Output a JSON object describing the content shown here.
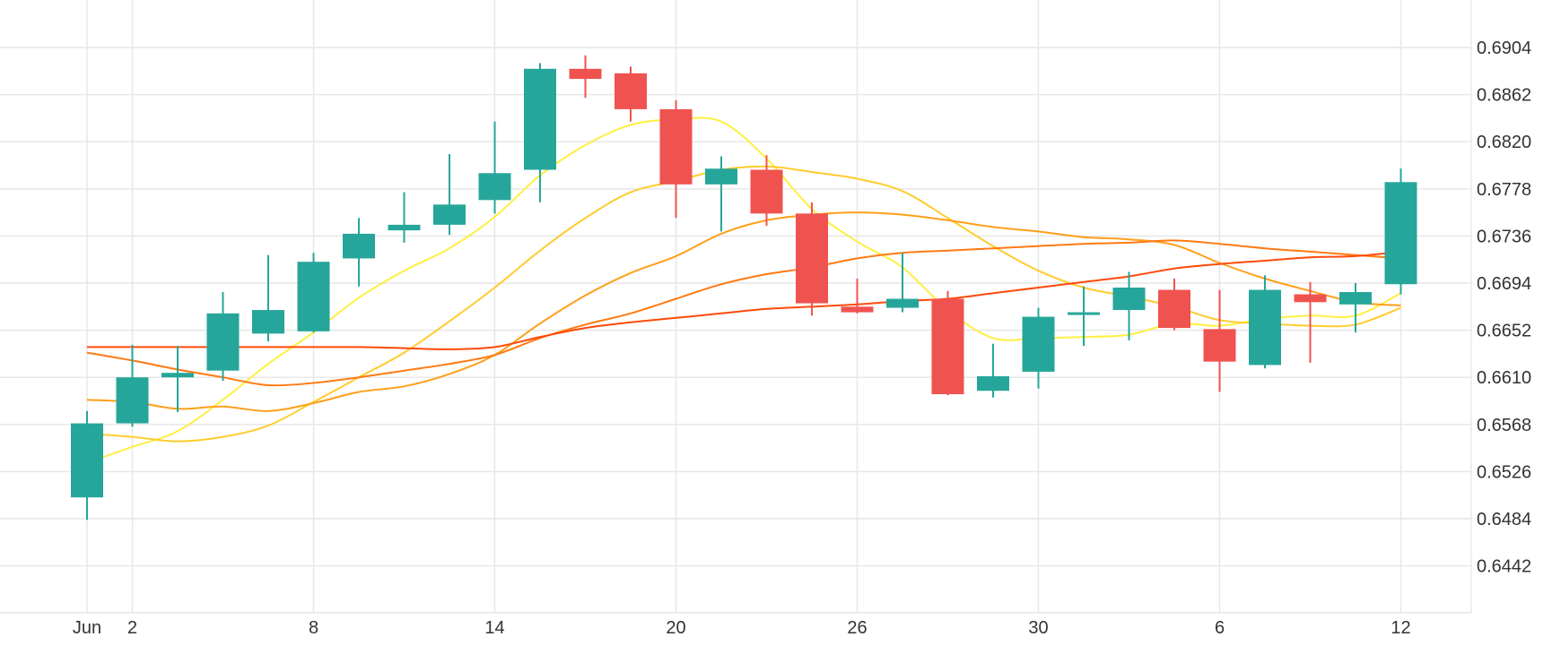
{
  "chart_data": {
    "type": "candlestick",
    "x_ticks": [
      {
        "label": "Jun",
        "index": 0
      },
      {
        "label": "2",
        "index": 1
      },
      {
        "label": "8",
        "index": 5
      },
      {
        "label": "14",
        "index": 9
      },
      {
        "label": "20",
        "index": 13
      },
      {
        "label": "26",
        "index": 17
      },
      {
        "label": "30",
        "index": 21
      },
      {
        "label": "6",
        "index": 25
      },
      {
        "label": "12",
        "index": 29
      }
    ],
    "y_ticks": [
      "0.6904",
      "0.6862",
      "0.6820",
      "0.6778",
      "0.6736",
      "0.6694",
      "0.6652",
      "0.6610",
      "0.6568",
      "0.6526",
      "0.6484",
      "0.6442"
    ],
    "ylim": [
      0.64,
      0.694
    ],
    "colors": {
      "up": "#26a69a",
      "down": "#ef5350",
      "grid": "#e6e6e6"
    },
    "candles": [
      {
        "o": 0.6503,
        "h": 0.658,
        "l": 0.6483,
        "c": 0.6569
      },
      {
        "o": 0.6569,
        "h": 0.6639,
        "l": 0.6566,
        "c": 0.661
      },
      {
        "o": 0.661,
        "h": 0.6638,
        "l": 0.6579,
        "c": 0.6614
      },
      {
        "o": 0.6616,
        "h": 0.6686,
        "l": 0.6607,
        "c": 0.6667
      },
      {
        "o": 0.6649,
        "h": 0.6719,
        "l": 0.6642,
        "c": 0.667
      },
      {
        "o": 0.6651,
        "h": 0.6721,
        "l": 0.665,
        "c": 0.6713
      },
      {
        "o": 0.6716,
        "h": 0.6752,
        "l": 0.6691,
        "c": 0.6738
      },
      {
        "o": 0.6741,
        "h": 0.6775,
        "l": 0.673,
        "c": 0.6746
      },
      {
        "o": 0.6746,
        "h": 0.6809,
        "l": 0.6737,
        "c": 0.6764
      },
      {
        "o": 0.6768,
        "h": 0.6838,
        "l": 0.6756,
        "c": 0.6792
      },
      {
        "o": 0.6795,
        "h": 0.689,
        "l": 0.6766,
        "c": 0.6885
      },
      {
        "o": 0.6885,
        "h": 0.6897,
        "l": 0.6859,
        "c": 0.6876
      },
      {
        "o": 0.6881,
        "h": 0.6887,
        "l": 0.6838,
        "c": 0.6849
      },
      {
        "o": 0.6849,
        "h": 0.6857,
        "l": 0.6752,
        "c": 0.6782
      },
      {
        "o": 0.6782,
        "h": 0.6807,
        "l": 0.674,
        "c": 0.6796
      },
      {
        "o": 0.6795,
        "h": 0.6808,
        "l": 0.6745,
        "c": 0.6756
      },
      {
        "o": 0.6756,
        "h": 0.6766,
        "l": 0.6665,
        "c": 0.6676
      },
      {
        "o": 0.6673,
        "h": 0.6698,
        "l": 0.6667,
        "c": 0.6668
      },
      {
        "o": 0.6672,
        "h": 0.6721,
        "l": 0.6668,
        "c": 0.668
      },
      {
        "o": 0.668,
        "h": 0.6687,
        "l": 0.6594,
        "c": 0.6595
      },
      {
        "o": 0.6598,
        "h": 0.664,
        "l": 0.6592,
        "c": 0.6611
      },
      {
        "o": 0.6615,
        "h": 0.6672,
        "l": 0.66,
        "c": 0.6664
      },
      {
        "o": 0.6666,
        "h": 0.6691,
        "l": 0.6638,
        "c": 0.6668
      },
      {
        "o": 0.667,
        "h": 0.6704,
        "l": 0.6643,
        "c": 0.669
      },
      {
        "o": 0.6688,
        "h": 0.6698,
        "l": 0.6652,
        "c": 0.6654
      },
      {
        "o": 0.6653,
        "h": 0.6688,
        "l": 0.6597,
        "c": 0.6624
      },
      {
        "o": 0.6621,
        "h": 0.6701,
        "l": 0.6618,
        "c": 0.6688
      },
      {
        "o": 0.6684,
        "h": 0.6695,
        "l": 0.6623,
        "c": 0.6677
      },
      {
        "o": 0.6675,
        "h": 0.6694,
        "l": 0.665,
        "c": 0.6686
      },
      {
        "o": 0.6693,
        "h": 0.6796,
        "l": 0.6684,
        "c": 0.6784
      }
    ],
    "moving_averages": [
      {
        "color": "#ffef40",
        "values": [
          0.6534,
          0.6548,
          0.6562,
          0.659,
          0.6622,
          0.665,
          0.6681,
          0.6705,
          0.6725,
          0.6753,
          0.679,
          0.6817,
          0.6835,
          0.684,
          0.6838,
          0.6805,
          0.676,
          0.6731,
          0.6708,
          0.667,
          0.6645,
          0.6645,
          0.6646,
          0.6648,
          0.6658,
          0.6656,
          0.6662,
          0.6665,
          0.6665,
          0.6685
        ]
      },
      {
        "color": "#ffcc2e",
        "values": [
          0.656,
          0.6557,
          0.6553,
          0.6557,
          0.6567,
          0.6588,
          0.661,
          0.6632,
          0.666,
          0.669,
          0.6723,
          0.6752,
          0.6775,
          0.6785,
          0.6795,
          0.6798,
          0.6793,
          0.6787,
          0.6776,
          0.6752,
          0.6727,
          0.6705,
          0.669,
          0.6682,
          0.6673,
          0.6661,
          0.6658,
          0.6656,
          0.6657,
          0.6672
        ]
      },
      {
        "color": "#ff9f1a",
        "values": [
          0.659,
          0.6588,
          0.6582,
          0.6584,
          0.658,
          0.6587,
          0.6597,
          0.6602,
          0.6613,
          0.663,
          0.6658,
          0.6683,
          0.6703,
          0.6718,
          0.6738,
          0.675,
          0.6755,
          0.6757,
          0.6755,
          0.675,
          0.6744,
          0.674,
          0.6735,
          0.6733,
          0.6728,
          0.6712,
          0.6698,
          0.6687,
          0.6677,
          0.6674
        ]
      },
      {
        "color": "#ff7a12",
        "values": [
          0.6632,
          0.6625,
          0.6617,
          0.661,
          0.6603,
          0.6605,
          0.661,
          0.6616,
          0.6622,
          0.663,
          0.6645,
          0.6657,
          0.6667,
          0.668,
          0.6693,
          0.6702,
          0.6708,
          0.6716,
          0.6721,
          0.6723,
          0.6725,
          0.6727,
          0.6729,
          0.673,
          0.6732,
          0.6729,
          0.6725,
          0.6722,
          0.6719,
          0.6716
        ]
      },
      {
        "color": "#ff4a0a",
        "values": [
          0.6637,
          0.6637,
          0.6637,
          0.6637,
          0.6637,
          0.6637,
          0.6637,
          0.6636,
          0.6635,
          0.6637,
          0.6646,
          0.6654,
          0.6659,
          0.6663,
          0.6667,
          0.6671,
          0.6673,
          0.6675,
          0.6678,
          0.668,
          0.6685,
          0.669,
          0.6695,
          0.67,
          0.6707,
          0.6711,
          0.6714,
          0.6717,
          0.6718,
          0.6722
        ]
      }
    ]
  }
}
